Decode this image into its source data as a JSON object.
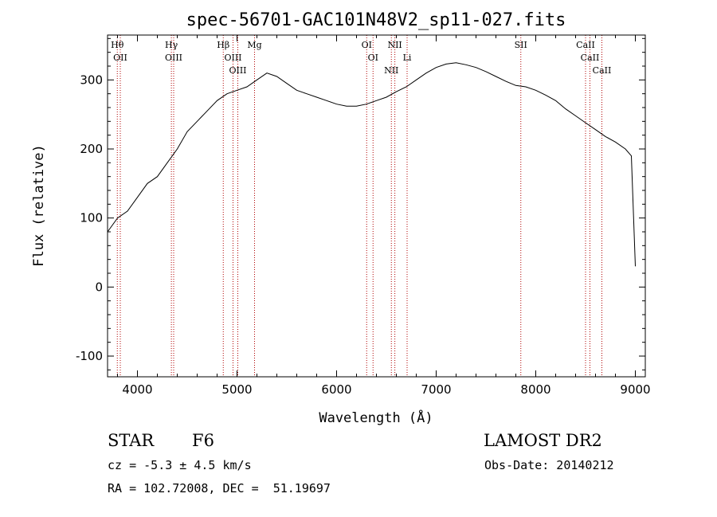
{
  "chart_data": {
    "type": "line",
    "title": "spec-56701-GAC101N48V2_sp11-027.fits",
    "xlabel": "Wavelength (Å)",
    "ylabel": "Flux (relative)",
    "xlim": [
      3700,
      9100
    ],
    "ylim": [
      -130,
      365
    ],
    "x_ticks": [
      4000,
      5000,
      6000,
      7000,
      8000,
      9000
    ],
    "y_ticks": [
      -100,
      0,
      100,
      200,
      300
    ],
    "grid": false,
    "series": [
      {
        "x": [
          3700,
          3800,
          3900,
          4000,
          4100,
          4200,
          4300,
          4400,
          4500,
          4600,
          4700,
          4800,
          4900,
          5000,
          5100,
          5200,
          5300,
          5400,
          5500,
          5600,
          5700,
          5800,
          5900,
          6000,
          6100,
          6200,
          6300,
          6400,
          6500,
          6600,
          6700,
          6800,
          6900,
          7000,
          7100,
          7200,
          7300,
          7400,
          7500,
          7600,
          7700,
          7800,
          7900,
          8000,
          8100,
          8200,
          8300,
          8400,
          8500,
          8600,
          8700,
          8800,
          8900,
          8960,
          9000
        ],
        "y": [
          80,
          100,
          110,
          130,
          150,
          160,
          180,
          200,
          225,
          240,
          255,
          270,
          280,
          285,
          290,
          300,
          310,
          305,
          295,
          285,
          280,
          275,
          270,
          265,
          262,
          262,
          265,
          270,
          275,
          283,
          290,
          300,
          310,
          318,
          323,
          325,
          322,
          318,
          312,
          305,
          298,
          292,
          290,
          285,
          278,
          270,
          258,
          248,
          238,
          228,
          218,
          210,
          200,
          190,
          30
        ]
      }
    ],
    "spectral_lines": [
      {
        "label": "Hθ",
        "x": 3798
      },
      {
        "label": "OII",
        "x": 3828
      },
      {
        "label": "Hγ",
        "x": 4341
      },
      {
        "label": "OIII",
        "x": 4364
      },
      {
        "label": "Hβ",
        "x": 4862
      },
      {
        "label": "OIII",
        "x": 4960
      },
      {
        "label": "OIII",
        "x": 5008
      },
      {
        "label": "Mg",
        "x": 5176
      },
      {
        "label": "OI",
        "x": 6302
      },
      {
        "label": "OI",
        "x": 6366
      },
      {
        "label": "NII",
        "x": 6550
      },
      {
        "label": "NII",
        "x": 6585
      },
      {
        "label": "Li",
        "x": 6708
      },
      {
        "label": "SII",
        "x": 7850
      },
      {
        "label": "CaII",
        "x": 8500
      },
      {
        "label": "CaII",
        "x": 8544
      },
      {
        "label": "CaII",
        "x": 8664
      }
    ]
  },
  "info": {
    "object_class": "STAR",
    "subclass": "F6",
    "survey": "LAMOST DR2",
    "cz": "cz = -5.3 ± 4.5 km/s",
    "obs_date": "Obs-Date: 20140212",
    "coords": "RA = 102.72008, DEC =  51.19697"
  }
}
